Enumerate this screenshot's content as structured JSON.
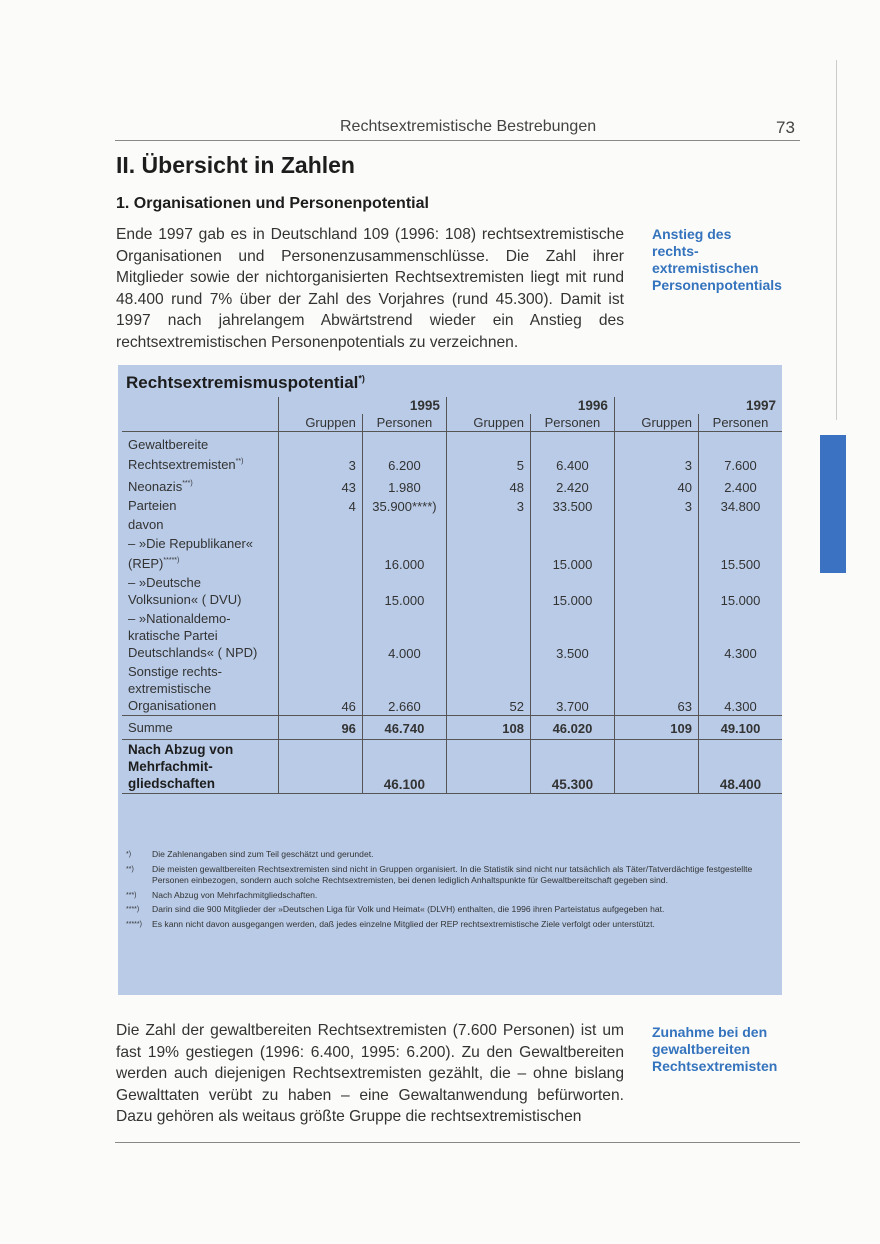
{
  "header": {
    "title": "Rechtsextremistische Bestrebungen",
    "page": "73"
  },
  "heading": "II. Übersicht in Zahlen",
  "subheading": "1. Organisationen und Personenpotential",
  "paragraphs": [
    "Ende 1997 gab es in Deutschland 109 (1996: 108) rechtsextremistische Organisationen und Personenzusammenschlüsse. Die Zahl ihrer Mitglieder sowie der nichtorganisierten Rechtsextremisten liegt mit rund 48.400 rund 7% über der Zahl des Vorjahres (rund 45.300). Damit ist 1997 nach jahrelangem Abwärtstrend wieder ein Anstieg des rechtsextremistischen Personenpotentials zu verzeichnen.",
    "Die Zahl der gewaltbereiten Rechtsextremisten (7.600 Personen) ist um fast 19% gestiegen (1996: 6.400, 1995: 6.200). Zu den Gewaltbereiten werden auch diejenigen Rechtsextremisten gezählt, die – ohne bislang Gewalttaten verübt zu haben – eine Gewaltanwendung befürworten. Dazu gehören als weitaus größte Gruppe die rechtsextremistischen"
  ],
  "margin_notes": [
    [
      "Anstieg des",
      "rechts-",
      "extremistischen",
      "Personenpotentials"
    ],
    [
      "Zunahme bei den",
      "gewaltbereiten",
      "Rechtsextremisten"
    ]
  ],
  "table": {
    "title": "Rechtsextremismuspotential",
    "title_mark": "*)",
    "years": [
      "1995",
      "1996",
      "1997"
    ],
    "subcolumns": [
      "Gruppen",
      "Personen"
    ],
    "rows": [
      {
        "label": [
          "Gewaltbereite",
          "Rechtsextremisten"
        ],
        "mark": "**)",
        "values": [
          "3",
          "6.200",
          "5",
          "6.400",
          "3",
          "7.600"
        ]
      },
      {
        "label": [
          "Neonazis"
        ],
        "mark": "***)",
        "values": [
          "43",
          "1.980",
          "48",
          "2.420",
          "40",
          "2.400"
        ]
      },
      {
        "label": [
          "Parteien"
        ],
        "values": [
          "4",
          "35.900****)",
          "3",
          "33.500",
          "3",
          "34.800"
        ]
      },
      {
        "label": [
          "davon"
        ],
        "values": [
          null,
          null,
          null,
          null,
          null,
          null
        ]
      },
      {
        "label": [
          "– »Die Republikaner«",
          "(REP)"
        ],
        "mark": "*****)",
        "values": [
          null,
          "16.000",
          null,
          "15.000",
          null,
          "15.500"
        ]
      },
      {
        "label": [
          "– »Deutsche",
          "Volksunion« ( DVU)"
        ],
        "values": [
          null,
          "15.000",
          null,
          "15.000",
          null,
          "15.000"
        ]
      },
      {
        "label": [
          "– »Nationaldemo-",
          "kratische Partei",
          "Deutschlands« ( NPD)"
        ],
        "values": [
          null,
          "4.000",
          null,
          "3.500",
          null,
          "4.300"
        ]
      },
      {
        "label": [
          "Sonstige rechts-",
          "extremistische",
          "Organisationen"
        ],
        "values": [
          "46",
          "2.660",
          "52",
          "3.700",
          "63",
          "4.300"
        ]
      }
    ],
    "sum": {
      "label": [
        "Summe"
      ],
      "values": [
        "96",
        "46.740",
        "108",
        "46.020",
        "109",
        "49.100"
      ]
    },
    "net": {
      "label": [
        "Nach Abzug von",
        "Mehrfachmit-",
        "gliedschaften"
      ],
      "values": [
        null,
        "46.100",
        null,
        "45.300",
        null,
        "48.400"
      ]
    },
    "footnotes": [
      {
        "mark": "*)",
        "text": "Die Zahlenangaben sind zum Teil geschätzt und gerundet."
      },
      {
        "mark": "**)",
        "text": "Die meisten gewaltbereiten Rechtsextremisten sind nicht in Gruppen organisiert. In die Statistik sind nicht nur tatsächlich als Täter/Tatverdächtige festgestellte Personen einbezogen, sondern auch solche Rechtsextremisten, bei denen lediglich Anhaltspunkte für Gewaltbereitschaft gegeben sind."
      },
      {
        "mark": "***)",
        "text": "Nach Abzug von Mehrfachmitgliedschaften."
      },
      {
        "mark": "****)",
        "text": "Darin sind die 900 Mitglieder der »Deutschen Liga für Volk und Heimat« (DLVH) enthalten, die 1996 ihren Parteistatus aufgegeben hat."
      },
      {
        "mark": "*****)",
        "text": "Es kann nicht davon ausgegangen werden, daß jedes einzelne Mitglied der REP rechtsextremistische Ziele verfolgt oder unterstützt."
      }
    ]
  }
}
